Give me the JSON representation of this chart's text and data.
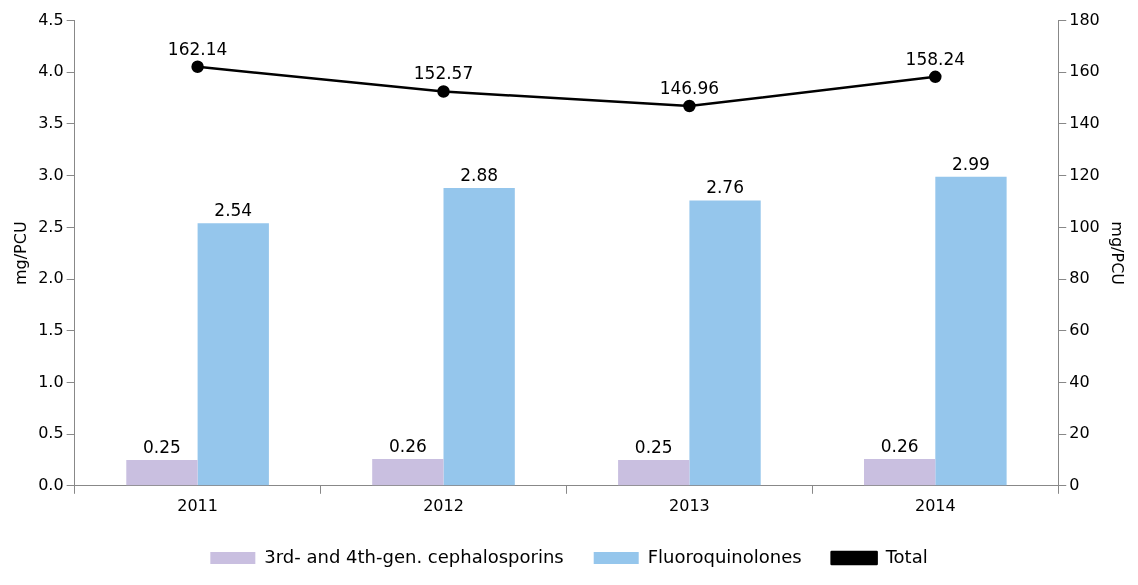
{
  "chart_data": {
    "type": "bar",
    "categories": [
      "2011",
      "2012",
      "2013",
      "2014"
    ],
    "series": [
      {
        "name": "3rd- and 4th-gen. cephalosporins",
        "color": "#c9bfe0",
        "values": [
          0.25,
          0.26,
          0.25,
          0.26
        ]
      },
      {
        "name": "Fluoroquinolones",
        "color": "#95c6ec",
        "values": [
          2.54,
          2.88,
          2.76,
          2.99
        ]
      },
      {
        "name": "Total",
        "type": "line",
        "axis": "y2",
        "color": "#000000",
        "values": [
          162.14,
          152.57,
          146.96,
          158.24
        ]
      }
    ],
    "ylabel": "mg/PCU",
    "y2label": "mg/PCU",
    "ylim": [
      0,
      4.5
    ],
    "yticks": [
      {
        "value": 0,
        "label": "0.0"
      },
      0.5,
      {
        "value": 1,
        "label": "1.0"
      },
      1.5,
      {
        "value": 2,
        "label": "2.0"
      },
      2.5,
      {
        "value": 3,
        "label": "3.0"
      },
      3.5,
      {
        "value": 4,
        "label": "4.0"
      },
      4.5
    ],
    "y2lim": [
      0,
      180
    ],
    "y2ticks": [
      0,
      20,
      40,
      60,
      80,
      100,
      120,
      140,
      160,
      180
    ],
    "grid": false,
    "legend": "bottom",
    "data_labels": true,
    "marker": "circle",
    "line_style": "solid"
  }
}
